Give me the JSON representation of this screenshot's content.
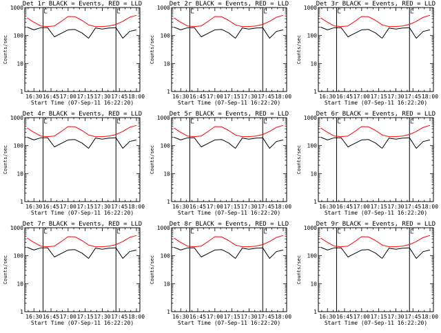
{
  "page": {
    "title_template": "Det {n}r BLACK = Events, RED = LLD",
    "x_label": "Start Time (07-Sep-11 16:22:20)",
    "y_label": "Counts/sec",
    "x_ticks": [
      "16:30",
      "16:45",
      "17:00",
      "17:15",
      "17:30",
      "17:45",
      "18:00"
    ],
    "y_ticks": [
      "1",
      "10",
      "100",
      "1000"
    ],
    "colors": {
      "events": "#000000",
      "lld": "#ff0000",
      "axes": "#000000",
      "background": "#ffffff"
    }
  },
  "chart_data": [
    {
      "type": "line",
      "panel": "Det 1",
      "title": "Det 1r BLACK = Events, RED = LLD",
      "xlabel": "Start Time (07-Sep-11 16:22:20)",
      "ylabel": "Counts/sec",
      "xlim": [
        "16:22",
        "18:03"
      ],
      "ylim": [
        1,
        1000
      ],
      "yscale": "log",
      "x_ticks": [
        "16:30",
        "16:45",
        "17:00",
        "17:15",
        "17:30",
        "17:45",
        "18:00"
      ],
      "vlines": [
        "16:38",
        "17:42"
      ],
      "x": [
        "16:24",
        "16:30",
        "16:36",
        "16:42",
        "16:48",
        "16:54",
        "17:00",
        "17:06",
        "17:12",
        "17:18",
        "17:24",
        "17:30",
        "17:36",
        "17:42",
        "17:48",
        "17:54",
        "18:00"
      ],
      "series": [
        {
          "name": "LLD",
          "color": "#ff0000",
          "values": [
            430,
            300,
            220,
            210,
            220,
            320,
            480,
            470,
            350,
            240,
            210,
            210,
            220,
            250,
            320,
            450,
            530
          ]
        },
        {
          "name": "Events",
          "color": "#000000",
          "values": [
            200,
            160,
            190,
            190,
            90,
            120,
            160,
            165,
            125,
            80,
            185,
            170,
            185,
            190,
            80,
            140,
            160
          ]
        }
      ]
    },
    {
      "type": "line",
      "panel": "Det 2",
      "title": "Det 2r BLACK = Events, RED = LLD",
      "xlabel": "Start Time (07-Sep-11 16:22:20)",
      "ylabel": "Counts/sec",
      "xlim": [
        "16:22",
        "18:03"
      ],
      "ylim": [
        1,
        1000
      ],
      "yscale": "log",
      "x_ticks": [
        "16:30",
        "16:45",
        "17:00",
        "17:15",
        "17:30",
        "17:45",
        "18:00"
      ],
      "vlines": [
        "16:38",
        "17:42"
      ],
      "x": [
        "16:24",
        "16:30",
        "16:36",
        "16:42",
        "16:48",
        "16:54",
        "17:00",
        "17:06",
        "17:12",
        "17:18",
        "17:24",
        "17:30",
        "17:36",
        "17:42",
        "17:48",
        "17:54",
        "18:00"
      ],
      "series": [
        {
          "name": "LLD",
          "color": "#ff0000",
          "values": [
            430,
            300,
            220,
            210,
            220,
            320,
            480,
            470,
            350,
            240,
            210,
            210,
            220,
            250,
            320,
            450,
            530
          ]
        },
        {
          "name": "Events",
          "color": "#000000",
          "values": [
            200,
            160,
            190,
            190,
            90,
            120,
            160,
            165,
            125,
            80,
            185,
            170,
            185,
            190,
            80,
            140,
            160
          ]
        }
      ]
    },
    {
      "type": "line",
      "panel": "Det 3",
      "title": "Det 3r BLACK = Events, RED = LLD",
      "xlabel": "Start Time (07-Sep-11 16:22:20)",
      "ylabel": "Counts/sec",
      "xlim": [
        "16:22",
        "18:03"
      ],
      "ylim": [
        1,
        1000
      ],
      "yscale": "log",
      "x_ticks": [
        "16:30",
        "16:45",
        "17:00",
        "17:15",
        "17:30",
        "17:45",
        "18:00"
      ],
      "vlines": [
        "16:38",
        "17:42"
      ],
      "x": [
        "16:24",
        "16:30",
        "16:36",
        "16:42",
        "16:48",
        "16:54",
        "17:00",
        "17:06",
        "17:12",
        "17:18",
        "17:24",
        "17:30",
        "17:36",
        "17:42",
        "17:48",
        "17:54",
        "18:00"
      ],
      "series": [
        {
          "name": "LLD",
          "color": "#ff0000",
          "values": [
            430,
            300,
            220,
            210,
            220,
            320,
            480,
            470,
            350,
            240,
            210,
            210,
            220,
            250,
            320,
            450,
            530
          ]
        },
        {
          "name": "Events",
          "color": "#000000",
          "values": [
            200,
            160,
            190,
            190,
            90,
            120,
            160,
            165,
            125,
            80,
            185,
            170,
            185,
            190,
            80,
            140,
            160
          ]
        }
      ]
    },
    {
      "type": "line",
      "panel": "Det 4",
      "title": "Det 4r BLACK = Events, RED = LLD",
      "xlabel": "Start Time (07-Sep-11 16:22:20)",
      "ylabel": "Counts/sec",
      "xlim": [
        "16:22",
        "18:03"
      ],
      "ylim": [
        1,
        1000
      ],
      "yscale": "log",
      "x_ticks": [
        "16:30",
        "16:45",
        "17:00",
        "17:15",
        "17:30",
        "17:45",
        "18:00"
      ],
      "vlines": [
        "16:38",
        "17:42"
      ],
      "x": [
        "16:24",
        "16:30",
        "16:36",
        "16:42",
        "16:48",
        "16:54",
        "17:00",
        "17:06",
        "17:12",
        "17:18",
        "17:24",
        "17:30",
        "17:36",
        "17:42",
        "17:48",
        "17:54",
        "18:00"
      ],
      "series": [
        {
          "name": "LLD",
          "color": "#ff0000",
          "values": [
            430,
            300,
            220,
            210,
            220,
            320,
            480,
            470,
            350,
            240,
            210,
            210,
            220,
            250,
            320,
            450,
            530
          ]
        },
        {
          "name": "Events",
          "color": "#000000",
          "values": [
            200,
            160,
            190,
            190,
            90,
            120,
            160,
            165,
            125,
            80,
            185,
            170,
            185,
            190,
            80,
            140,
            160
          ]
        }
      ]
    },
    {
      "type": "line",
      "panel": "Det 5",
      "title": "Det 5r BLACK = Events, RED = LLD",
      "xlabel": "Start Time (07-Sep-11 16:22:20)",
      "ylabel": "Counts/sec",
      "xlim": [
        "16:22",
        "18:03"
      ],
      "ylim": [
        1,
        1000
      ],
      "yscale": "log",
      "x_ticks": [
        "16:30",
        "16:45",
        "17:00",
        "17:15",
        "17:30",
        "17:45",
        "18:00"
      ],
      "vlines": [
        "16:38",
        "17:42"
      ],
      "x": [
        "16:24",
        "16:30",
        "16:36",
        "16:42",
        "16:48",
        "16:54",
        "17:00",
        "17:06",
        "17:12",
        "17:18",
        "17:24",
        "17:30",
        "17:36",
        "17:42",
        "17:48",
        "17:54",
        "18:00"
      ],
      "series": [
        {
          "name": "LLD",
          "color": "#ff0000",
          "values": [
            430,
            300,
            220,
            210,
            220,
            320,
            480,
            470,
            350,
            240,
            210,
            210,
            220,
            250,
            320,
            450,
            530
          ]
        },
        {
          "name": "Events",
          "color": "#000000",
          "values": [
            200,
            160,
            190,
            190,
            90,
            120,
            160,
            165,
            125,
            80,
            185,
            170,
            185,
            190,
            80,
            140,
            160
          ]
        }
      ]
    },
    {
      "type": "line",
      "panel": "Det 6",
      "title": "Det 6r BLACK = Events, RED = LLD",
      "xlabel": "Start Time (07-Sep-11 16:22:20)",
      "ylabel": "Counts/sec",
      "xlim": [
        "16:22",
        "18:03"
      ],
      "ylim": [
        1,
        1000
      ],
      "yscale": "log",
      "x_ticks": [
        "16:30",
        "16:45",
        "17:00",
        "17:15",
        "17:30",
        "17:45",
        "18:00"
      ],
      "vlines": [
        "16:38",
        "17:42"
      ],
      "x": [
        "16:24",
        "16:30",
        "16:36",
        "16:42",
        "16:48",
        "16:54",
        "17:00",
        "17:06",
        "17:12",
        "17:18",
        "17:24",
        "17:30",
        "17:36",
        "17:42",
        "17:48",
        "17:54",
        "18:00"
      ],
      "series": [
        {
          "name": "LLD",
          "color": "#ff0000",
          "values": [
            430,
            300,
            220,
            210,
            220,
            320,
            480,
            470,
            350,
            240,
            210,
            210,
            220,
            250,
            320,
            450,
            530
          ]
        },
        {
          "name": "Events",
          "color": "#000000",
          "values": [
            200,
            160,
            190,
            190,
            90,
            120,
            160,
            165,
            125,
            80,
            185,
            170,
            185,
            190,
            80,
            140,
            160
          ]
        }
      ]
    },
    {
      "type": "line",
      "panel": "Det 7",
      "title": "Det 7r BLACK = Events, RED = LLD",
      "xlabel": "Start Time (07-Sep-11 16:22:20)",
      "ylabel": "Counts/sec",
      "xlim": [
        "16:22",
        "18:03"
      ],
      "ylim": [
        1,
        1000
      ],
      "yscale": "log",
      "x_ticks": [
        "16:30",
        "16:45",
        "17:00",
        "17:15",
        "17:30",
        "17:45",
        "18:00"
      ],
      "vlines": [
        "16:38",
        "17:42"
      ],
      "x": [
        "16:24",
        "16:30",
        "16:36",
        "16:42",
        "16:48",
        "16:54",
        "17:00",
        "17:06",
        "17:12",
        "17:18",
        "17:24",
        "17:30",
        "17:36",
        "17:42",
        "17:48",
        "17:54",
        "18:00"
      ],
      "series": [
        {
          "name": "LLD",
          "color": "#ff0000",
          "values": [
            430,
            300,
            220,
            210,
            220,
            320,
            480,
            470,
            350,
            240,
            210,
            210,
            220,
            250,
            320,
            450,
            530
          ]
        },
        {
          "name": "Events",
          "color": "#000000",
          "values": [
            200,
            160,
            190,
            190,
            90,
            120,
            160,
            165,
            125,
            80,
            185,
            170,
            185,
            190,
            80,
            140,
            160
          ]
        }
      ]
    },
    {
      "type": "line",
      "panel": "Det 8",
      "title": "Det 8r BLACK = Events, RED = LLD",
      "xlabel": "Start Time (07-Sep-11 16:22:20)",
      "ylabel": "Counts/sec",
      "xlim": [
        "16:22",
        "18:03"
      ],
      "ylim": [
        1,
        1000
      ],
      "yscale": "log",
      "x_ticks": [
        "16:30",
        "16:45",
        "17:00",
        "17:15",
        "17:30",
        "17:45",
        "18:00"
      ],
      "vlines": [
        "16:38",
        "17:42"
      ],
      "x": [
        "16:24",
        "16:30",
        "16:36",
        "16:42",
        "16:48",
        "16:54",
        "17:00",
        "17:06",
        "17:12",
        "17:18",
        "17:24",
        "17:30",
        "17:36",
        "17:42",
        "17:48",
        "17:54",
        "18:00"
      ],
      "series": [
        {
          "name": "LLD",
          "color": "#ff0000",
          "values": [
            430,
            300,
            220,
            210,
            220,
            320,
            480,
            470,
            350,
            240,
            210,
            210,
            220,
            250,
            320,
            450,
            530
          ]
        },
        {
          "name": "Events",
          "color": "#000000",
          "values": [
            200,
            160,
            190,
            190,
            90,
            120,
            160,
            165,
            125,
            80,
            185,
            170,
            185,
            190,
            80,
            140,
            160
          ]
        }
      ]
    },
    {
      "type": "line",
      "panel": "Det 9",
      "title": "Det 9r BLACK = Events, RED = LLD",
      "xlabel": "Start Time (07-Sep-11 16:22:20)",
      "ylabel": "Counts/sec",
      "xlim": [
        "16:22",
        "18:03"
      ],
      "ylim": [
        1,
        1000
      ],
      "yscale": "log",
      "x_ticks": [
        "16:30",
        "16:45",
        "17:00",
        "17:15",
        "17:30",
        "17:45",
        "18:00"
      ],
      "vlines": [
        "16:38",
        "17:42"
      ],
      "x": [
        "16:24",
        "16:30",
        "16:36",
        "16:42",
        "16:48",
        "16:54",
        "17:00",
        "17:06",
        "17:12",
        "17:18",
        "17:24",
        "17:30",
        "17:36",
        "17:42",
        "17:48",
        "17:54",
        "18:00"
      ],
      "series": [
        {
          "name": "LLD",
          "color": "#ff0000",
          "values": [
            430,
            300,
            220,
            210,
            220,
            320,
            480,
            470,
            350,
            240,
            210,
            210,
            220,
            250,
            320,
            450,
            530
          ]
        },
        {
          "name": "Events",
          "color": "#000000",
          "values": [
            200,
            160,
            190,
            190,
            90,
            120,
            160,
            165,
            125,
            80,
            185,
            170,
            185,
            190,
            80,
            140,
            160
          ]
        }
      ]
    }
  ]
}
